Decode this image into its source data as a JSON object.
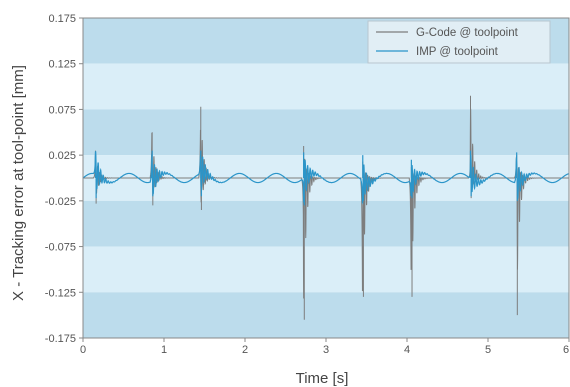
{
  "chart_data": {
    "type": "line",
    "title": "",
    "xlabel": "Time [s]",
    "ylabel": "X - Tracking error at tool-point [mm]",
    "xlim": [
      0,
      6
    ],
    "ylim": [
      -0.175,
      0.175
    ],
    "x_ticks": [
      "0",
      "1",
      "2",
      "3",
      "4",
      "5",
      "6"
    ],
    "y_ticks": [
      "0.175",
      "0.125",
      "0.075",
      "0.025",
      "-0.025",
      "-0.075",
      "-0.125",
      "-0.175"
    ],
    "grid": "alternating horizontal bands",
    "legend_position": "top-right",
    "background_colors": {
      "band_dark": "#bcdcec",
      "band_light": "#daeef8"
    },
    "series": [
      {
        "name": "G-Code @ toolpoint",
        "color": "#7d7d7d",
        "baseline": 0.0,
        "events": [
          {
            "t": 0.15,
            "max": 0.03,
            "min": -0.028
          },
          {
            "t": 0.85,
            "max": 0.05,
            "min": -0.03
          },
          {
            "t": 1.45,
            "max": 0.078,
            "min": -0.035
          },
          {
            "t": 2.72,
            "max": 0.035,
            "min": -0.155
          },
          {
            "t": 3.45,
            "max": 0.018,
            "min": -0.13
          },
          {
            "t": 4.05,
            "max": 0.012,
            "min": -0.13
          },
          {
            "t": 4.78,
            "max": 0.09,
            "min": -0.022
          },
          {
            "t": 5.35,
            "max": 0.025,
            "min": -0.15
          }
        ]
      },
      {
        "name": "IMP @ toolpoint",
        "color": "#2b95c9",
        "baseline": 0.0,
        "oscillation_amplitude": 0.005,
        "events": [
          {
            "t": 0.15,
            "max": 0.028,
            "min": -0.022
          },
          {
            "t": 0.85,
            "max": 0.03,
            "min": -0.02
          },
          {
            "t": 1.45,
            "max": 0.03,
            "min": -0.02
          },
          {
            "t": 2.72,
            "max": 0.028,
            "min": -0.03
          },
          {
            "t": 3.45,
            "max": 0.025,
            "min": -0.025
          },
          {
            "t": 4.05,
            "max": 0.02,
            "min": -0.022
          },
          {
            "t": 4.78,
            "max": 0.03,
            "min": -0.02
          },
          {
            "t": 5.35,
            "max": 0.028,
            "min": -0.025
          }
        ]
      }
    ]
  }
}
